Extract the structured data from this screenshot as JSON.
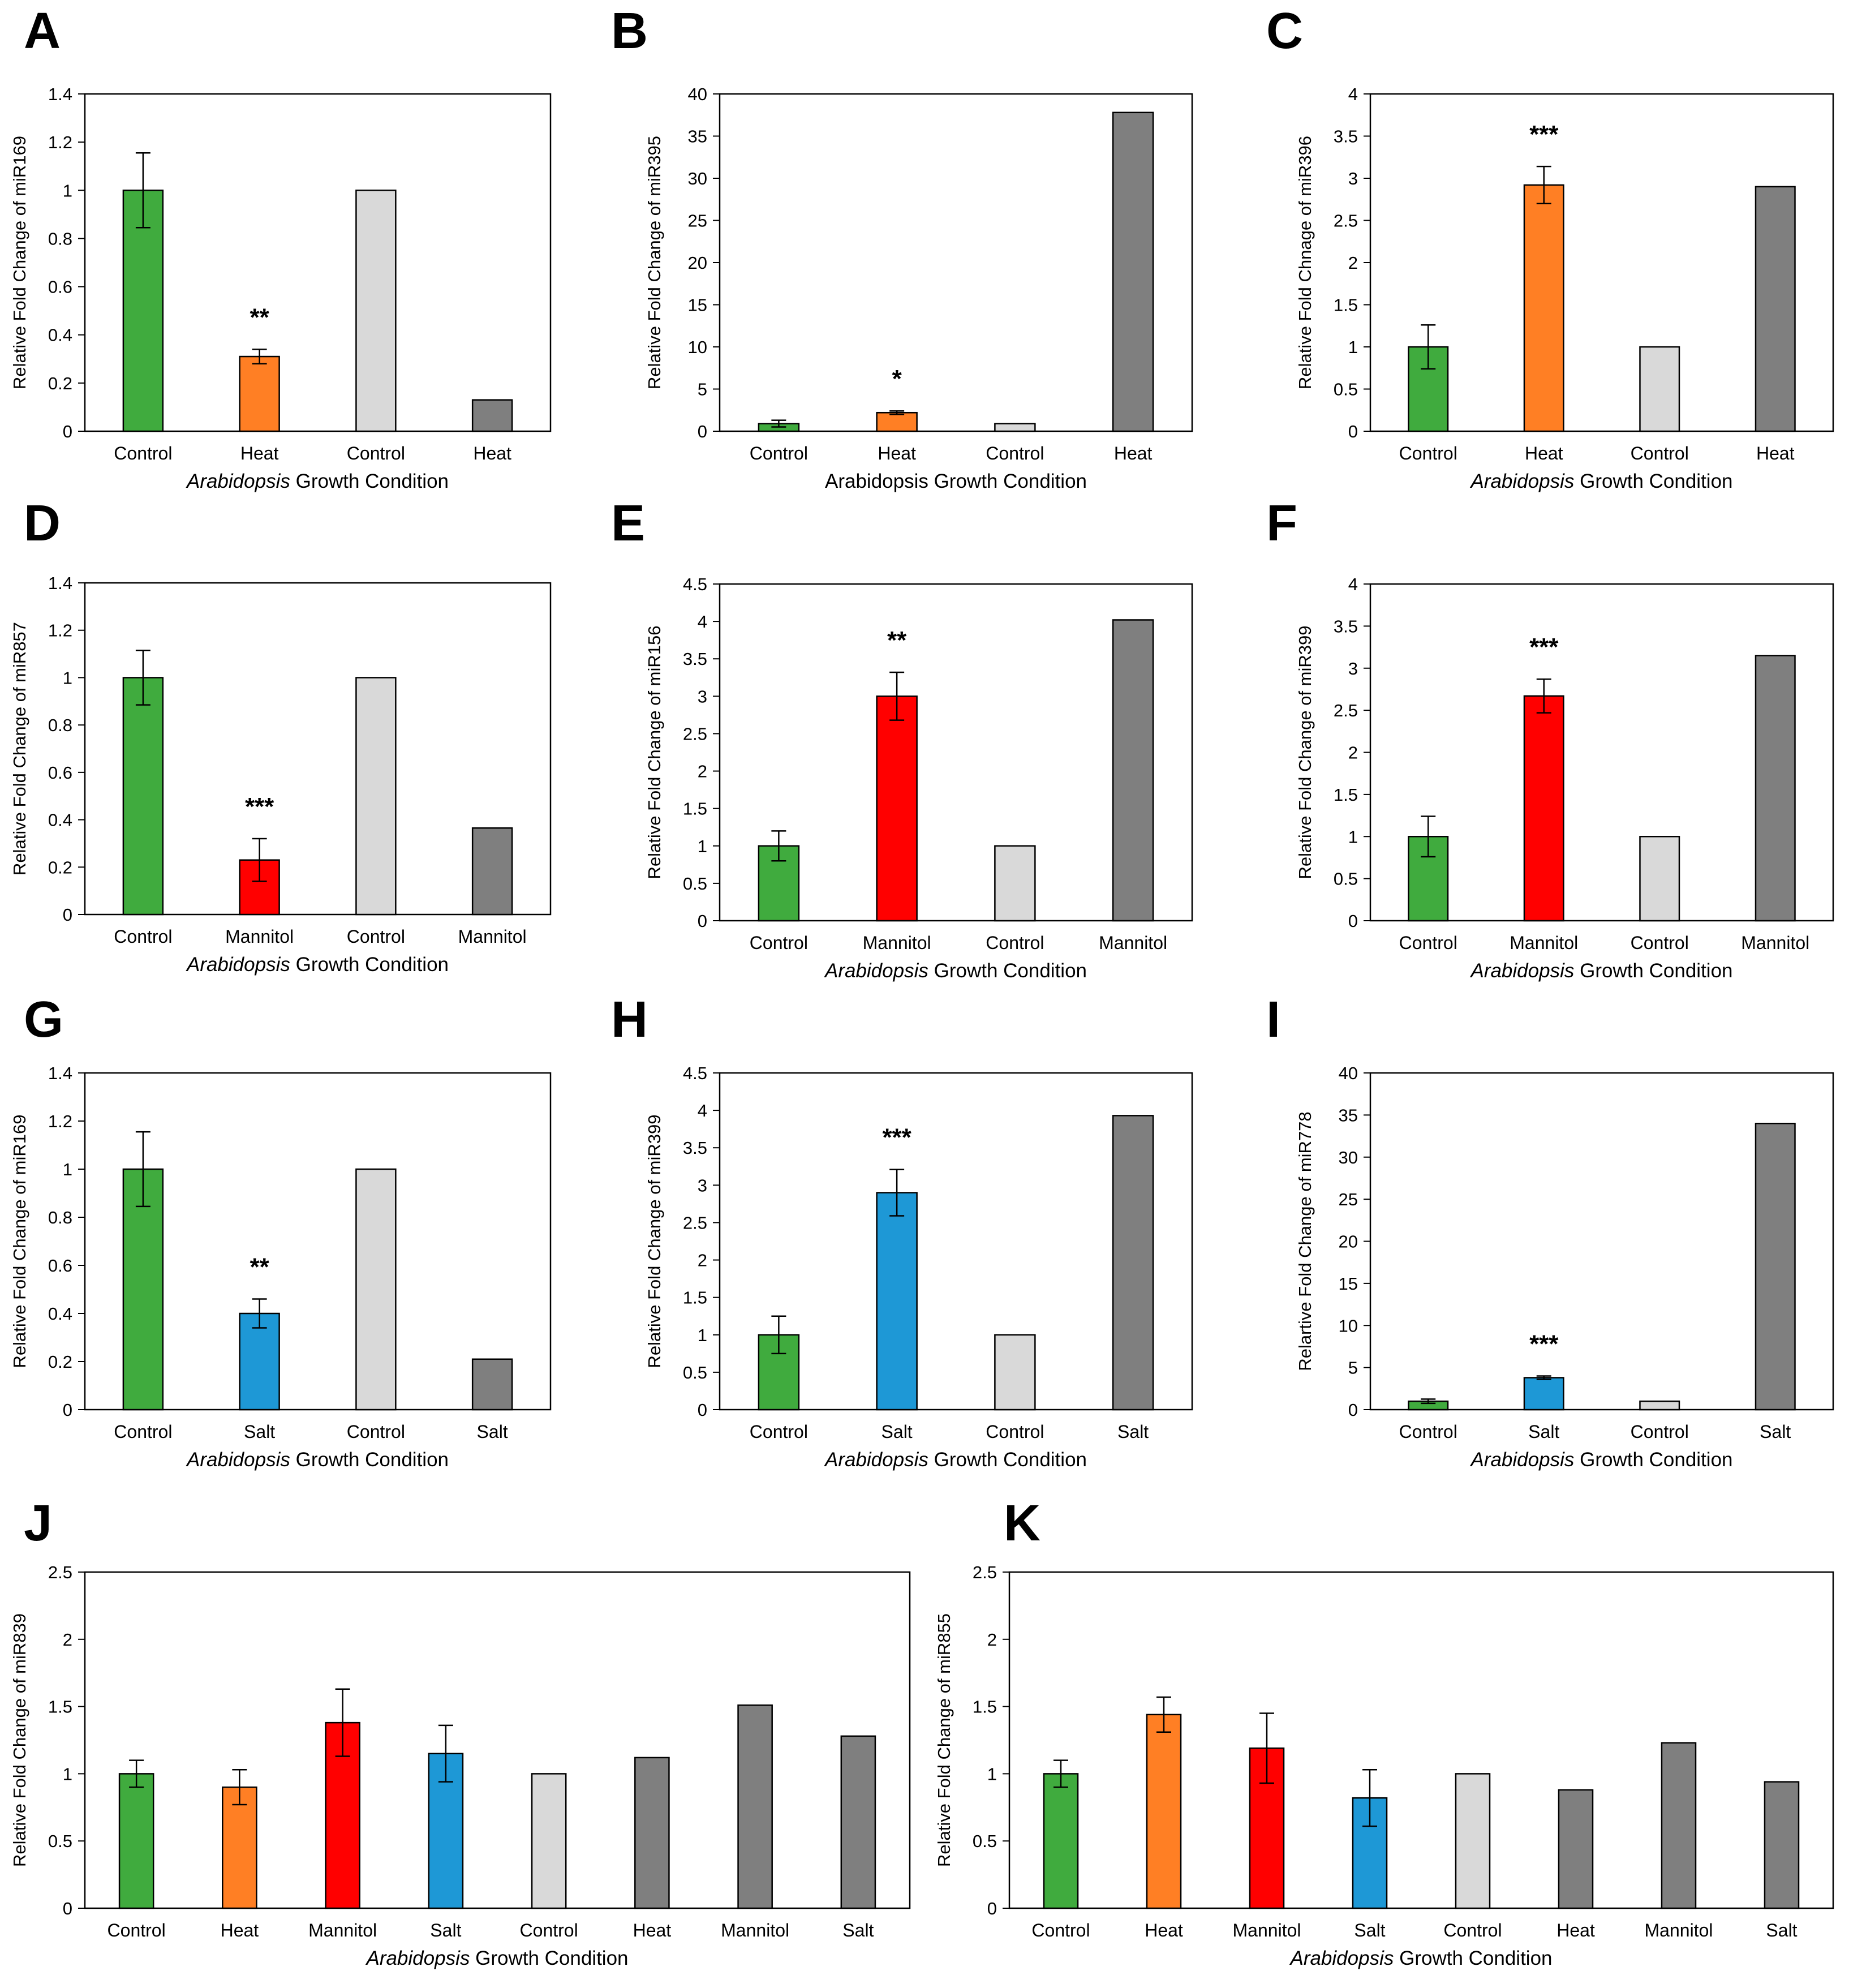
{
  "colors": {
    "control": "#40ab3e",
    "heat": "#ff7f24",
    "mannitol": "#ff0000",
    "salt": "#1e98d6",
    "ref_control": "#d9d9d9",
    "ref_treatment": "#7f7f7f"
  },
  "chart_data": [
    {
      "panel": "A",
      "type": "bar",
      "ylabel": "Relative Fold Change of miR169",
      "xlabel_italic": "Arabidopsis",
      "xlabel_rest": "Growth Condition",
      "categories": [
        "Control",
        "Heat",
        "Control",
        "Heat"
      ],
      "values": [
        1.0,
        0.31,
        1.0,
        0.13
      ],
      "errors": [
        0.155,
        0.03,
        null,
        null
      ],
      "stars": [
        "",
        "**",
        "",
        ""
      ],
      "bar_colors": [
        "control",
        "heat",
        "ref_control",
        "ref_treatment"
      ],
      "ylim": [
        0,
        1.4
      ],
      "yticks": [
        "0",
        "0.2",
        "0.4",
        "0.6",
        "0.8",
        "1",
        "1.2",
        "1.4"
      ]
    },
    {
      "panel": "B",
      "type": "bar",
      "ylabel": "Relative Fold Change of miR395",
      "xlabel_italic": "",
      "xlabel_rest": "Arabidopsis Growth Condition",
      "categories": [
        "Control",
        "Heat",
        "Control",
        "Heat"
      ],
      "values": [
        0.9,
        2.2,
        0.9,
        37.8
      ],
      "errors": [
        0.4,
        0.2,
        null,
        null
      ],
      "stars": [
        "",
        "*",
        "",
        ""
      ],
      "bar_colors": [
        "control",
        "heat",
        "ref_control",
        "ref_treatment"
      ],
      "ylim": [
        0,
        40
      ],
      "yticks": [
        "0",
        "5",
        "10",
        "15",
        "20",
        "25",
        "30",
        "35",
        "40"
      ]
    },
    {
      "panel": "C",
      "type": "bar",
      "ylabel": "Relative Fold Chnage of miR396",
      "xlabel_italic": "Arabidopsis",
      "xlabel_rest": "Growth Condition",
      "categories": [
        "Control",
        "Heat",
        "Control",
        "Heat"
      ],
      "values": [
        1.0,
        2.92,
        1.0,
        2.9
      ],
      "errors": [
        0.26,
        0.22,
        null,
        null
      ],
      "stars": [
        "",
        "***",
        "",
        ""
      ],
      "bar_colors": [
        "control",
        "heat",
        "ref_control",
        "ref_treatment"
      ],
      "ylim": [
        0,
        4
      ],
      "yticks": [
        "0",
        "0.5",
        "1",
        "1.5",
        "2",
        "2.5",
        "3",
        "3.5",
        "4"
      ]
    },
    {
      "panel": "D",
      "type": "bar",
      "ylabel": "Relative Fold Change of miR857",
      "xlabel_italic": "Arabidopsis",
      "xlabel_rest": "Growth Condition",
      "categories": [
        "Control",
        "Mannitol",
        "Control",
        "Mannitol"
      ],
      "values": [
        1.0,
        0.23,
        1.0,
        0.365
      ],
      "errors": [
        0.115,
        0.09,
        null,
        null
      ],
      "stars": [
        "",
        "***",
        "",
        ""
      ],
      "bar_colors": [
        "control",
        "mannitol",
        "ref_control",
        "ref_treatment"
      ],
      "ylim": [
        0,
        1.4
      ],
      "yticks": [
        "0",
        "0.2",
        "0.4",
        "0.6",
        "0.8",
        "1",
        "1.2",
        "1.4"
      ]
    },
    {
      "panel": "E",
      "type": "bar",
      "ylabel": "Relative Fold Change of miR156",
      "xlabel_italic": "Arabidopsis",
      "xlabel_rest": "Growth Condition",
      "categories": [
        "Control",
        "Mannitol",
        "Control",
        "Mannitol"
      ],
      "values": [
        1.0,
        3.0,
        1.0,
        4.02
      ],
      "errors": [
        0.2,
        0.32,
        null,
        null
      ],
      "stars": [
        "",
        "**",
        "",
        ""
      ],
      "bar_colors": [
        "control",
        "mannitol",
        "ref_control",
        "ref_treatment"
      ],
      "ylim": [
        0,
        4.5
      ],
      "yticks": [
        "0",
        "0.5",
        "1",
        "1.5",
        "2",
        "2.5",
        "3",
        "3.5",
        "4",
        "4.5"
      ]
    },
    {
      "panel": "F",
      "type": "bar",
      "ylabel": "Relative Fold Change of miR399",
      "xlabel_italic": "Arabidopsis",
      "xlabel_rest": "Growth Condition",
      "categories": [
        "Control",
        "Mannitol",
        "Control",
        "Mannitol"
      ],
      "values": [
        1.0,
        2.67,
        1.0,
        3.15
      ],
      "errors": [
        0.24,
        0.2,
        null,
        null
      ],
      "stars": [
        "",
        "***",
        "",
        ""
      ],
      "bar_colors": [
        "control",
        "mannitol",
        "ref_control",
        "ref_treatment"
      ],
      "ylim": [
        0,
        4
      ],
      "yticks": [
        "0",
        "0.5",
        "1",
        "1.5",
        "2",
        "2.5",
        "3",
        "3.5",
        "4"
      ]
    },
    {
      "panel": "G",
      "type": "bar",
      "ylabel": "Relative Fold Change of miR169",
      "xlabel_italic": "Arabidopsis",
      "xlabel_rest": "Growth Condition",
      "categories": [
        "Control",
        "Salt",
        "Control",
        "Salt"
      ],
      "values": [
        1.0,
        0.4,
        1.0,
        0.21
      ],
      "errors": [
        0.155,
        0.06,
        null,
        null
      ],
      "stars": [
        "",
        "**",
        "",
        ""
      ],
      "bar_colors": [
        "control",
        "salt",
        "ref_control",
        "ref_treatment"
      ],
      "ylim": [
        0,
        1.4
      ],
      "yticks": [
        "0",
        "0.2",
        "0.4",
        "0.6",
        "0.8",
        "1",
        "1.2",
        "1.4"
      ]
    },
    {
      "panel": "H",
      "type": "bar",
      "ylabel": "Relative Fold Change of miR399",
      "xlabel_italic": "Arabidopsis",
      "xlabel_rest": "Growth Condition",
      "categories": [
        "Control",
        "Salt",
        "Control",
        "Salt"
      ],
      "values": [
        1.0,
        2.9,
        1.0,
        3.93
      ],
      "errors": [
        0.25,
        0.31,
        null,
        null
      ],
      "stars": [
        "",
        "***",
        "",
        ""
      ],
      "bar_colors": [
        "control",
        "salt",
        "ref_control",
        "ref_treatment"
      ],
      "ylim": [
        0,
        4.5
      ],
      "yticks": [
        "0",
        "0.5",
        "1",
        "1.5",
        "2",
        "2.5",
        "3",
        "3.5",
        "4",
        "4.5"
      ]
    },
    {
      "panel": "I",
      "type": "bar",
      "ylabel": "Relartive Fold Change of miR778",
      "xlabel_italic": "Arabidopsis",
      "xlabel_rest": "Growth Condition",
      "categories": [
        "Control",
        "Salt",
        "Control",
        "Salt"
      ],
      "values": [
        1.0,
        3.8,
        1.0,
        34.0
      ],
      "errors": [
        0.25,
        0.2,
        null,
        null
      ],
      "stars": [
        "",
        "***",
        "",
        ""
      ],
      "bar_colors": [
        "control",
        "salt",
        "ref_control",
        "ref_treatment"
      ],
      "ylim": [
        0,
        40
      ],
      "yticks": [
        "0",
        "5",
        "10",
        "15",
        "20",
        "25",
        "30",
        "35",
        "40"
      ]
    },
    {
      "panel": "J",
      "type": "bar",
      "ylabel": "Relative Fold Change of miR839",
      "xlabel_italic": "Arabidopsis",
      "xlabel_rest": "Growth Condition",
      "categories": [
        "Control",
        "Heat",
        "Mannitol",
        "Salt",
        "Control",
        "Heat",
        "Mannitol",
        "Salt"
      ],
      "values": [
        1.0,
        0.9,
        1.38,
        1.15,
        1.0,
        1.12,
        1.51,
        1.28
      ],
      "errors": [
        0.1,
        0.13,
        0.25,
        0.21,
        null,
        null,
        null,
        null
      ],
      "stars": [
        "",
        "",
        "",
        "",
        "",
        "",
        "",
        ""
      ],
      "bar_colors": [
        "control",
        "heat",
        "mannitol",
        "salt",
        "ref_control",
        "ref_treatment",
        "ref_treatment",
        "ref_treatment"
      ],
      "ylim": [
        0,
        2.5
      ],
      "yticks": [
        "0",
        "0.5",
        "1",
        "1.5",
        "2",
        "2.5"
      ]
    },
    {
      "panel": "K",
      "type": "bar",
      "ylabel": "Relative Fold Change of miR855",
      "xlabel_italic": "Arabidopsis",
      "xlabel_rest": "Growth Condition",
      "categories": [
        "Control",
        "Heat",
        "Mannitol",
        "Salt",
        "Control",
        "Heat",
        "Mannitol",
        "Salt"
      ],
      "values": [
        1.0,
        1.44,
        1.19,
        0.82,
        1.0,
        0.88,
        1.23,
        0.94
      ],
      "errors": [
        0.1,
        0.13,
        0.26,
        0.21,
        null,
        null,
        null,
        null
      ],
      "stars": [
        "",
        "",
        "",
        "",
        "",
        "",
        "",
        ""
      ],
      "bar_colors": [
        "control",
        "heat",
        "mannitol",
        "salt",
        "ref_control",
        "ref_treatment",
        "ref_treatment",
        "ref_treatment"
      ],
      "ylim": [
        0,
        2.5
      ],
      "yticks": [
        "0",
        "0.5",
        "1",
        "1.5",
        "2",
        "2.5"
      ]
    }
  ]
}
